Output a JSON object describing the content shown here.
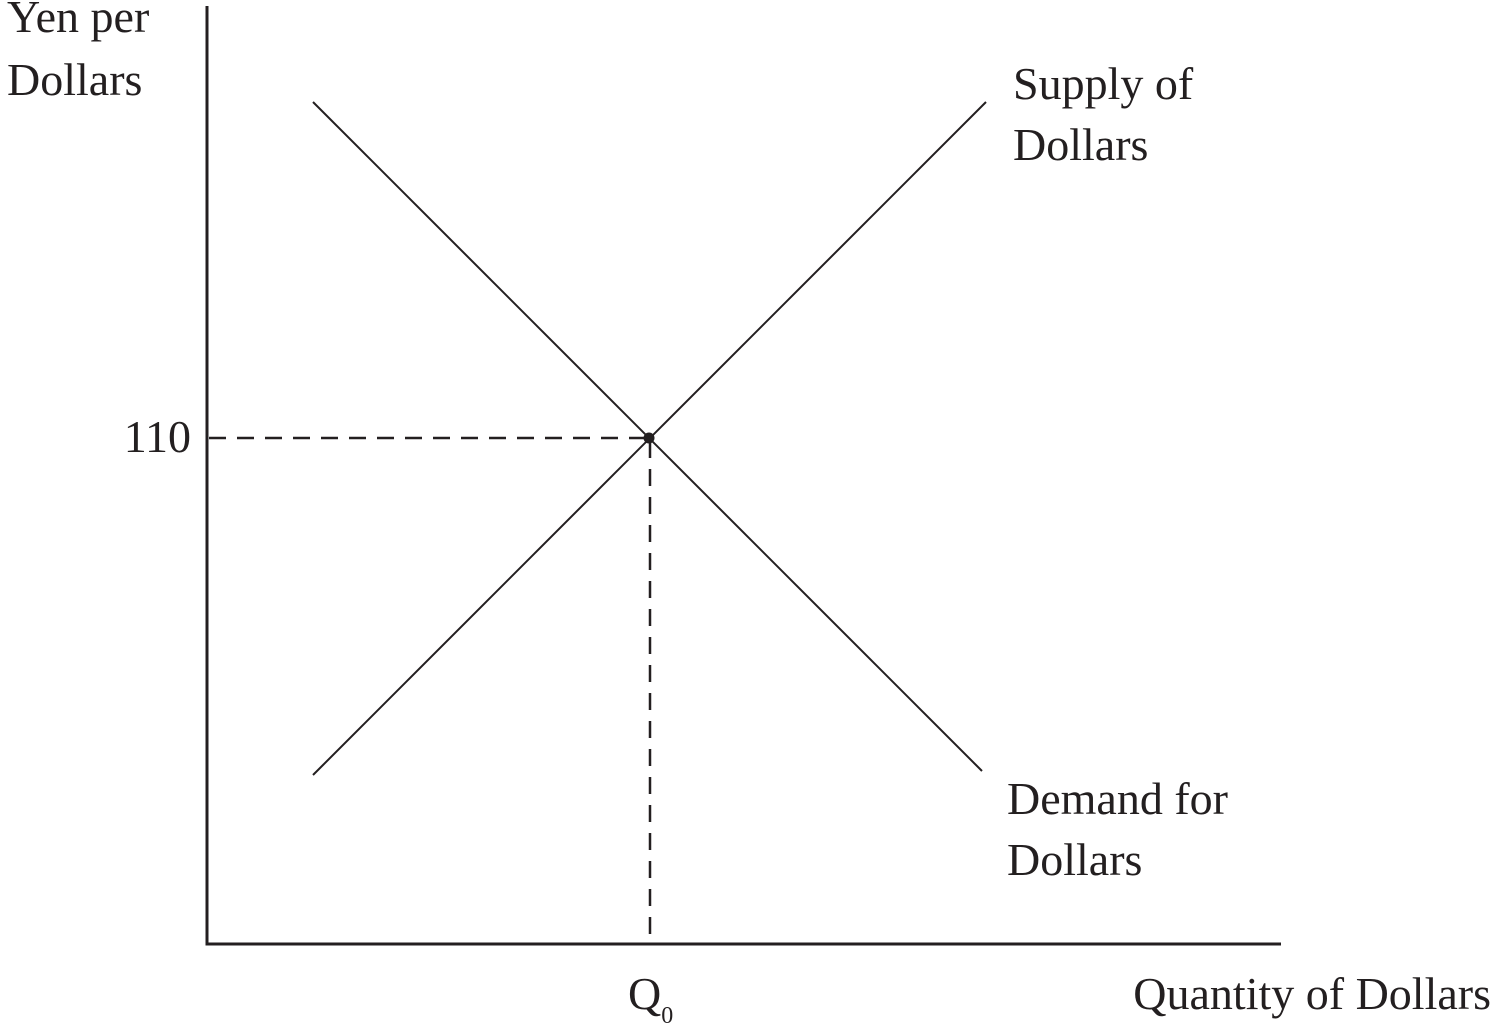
{
  "diagram": {
    "y_axis_label": [
      "Yen per",
      "Dollars"
    ],
    "x_axis_label": "Quantity of Dollars",
    "equilibrium_price_label": "110",
    "equilibrium_quantity_label": {
      "main": "Q",
      "subscript": "0"
    },
    "supply_label": [
      "Supply of",
      "Dollars"
    ],
    "demand_label": [
      "Demand for",
      "Dollars"
    ]
  },
  "colors": {
    "ink": "#231f20",
    "background": "#ffffff"
  }
}
